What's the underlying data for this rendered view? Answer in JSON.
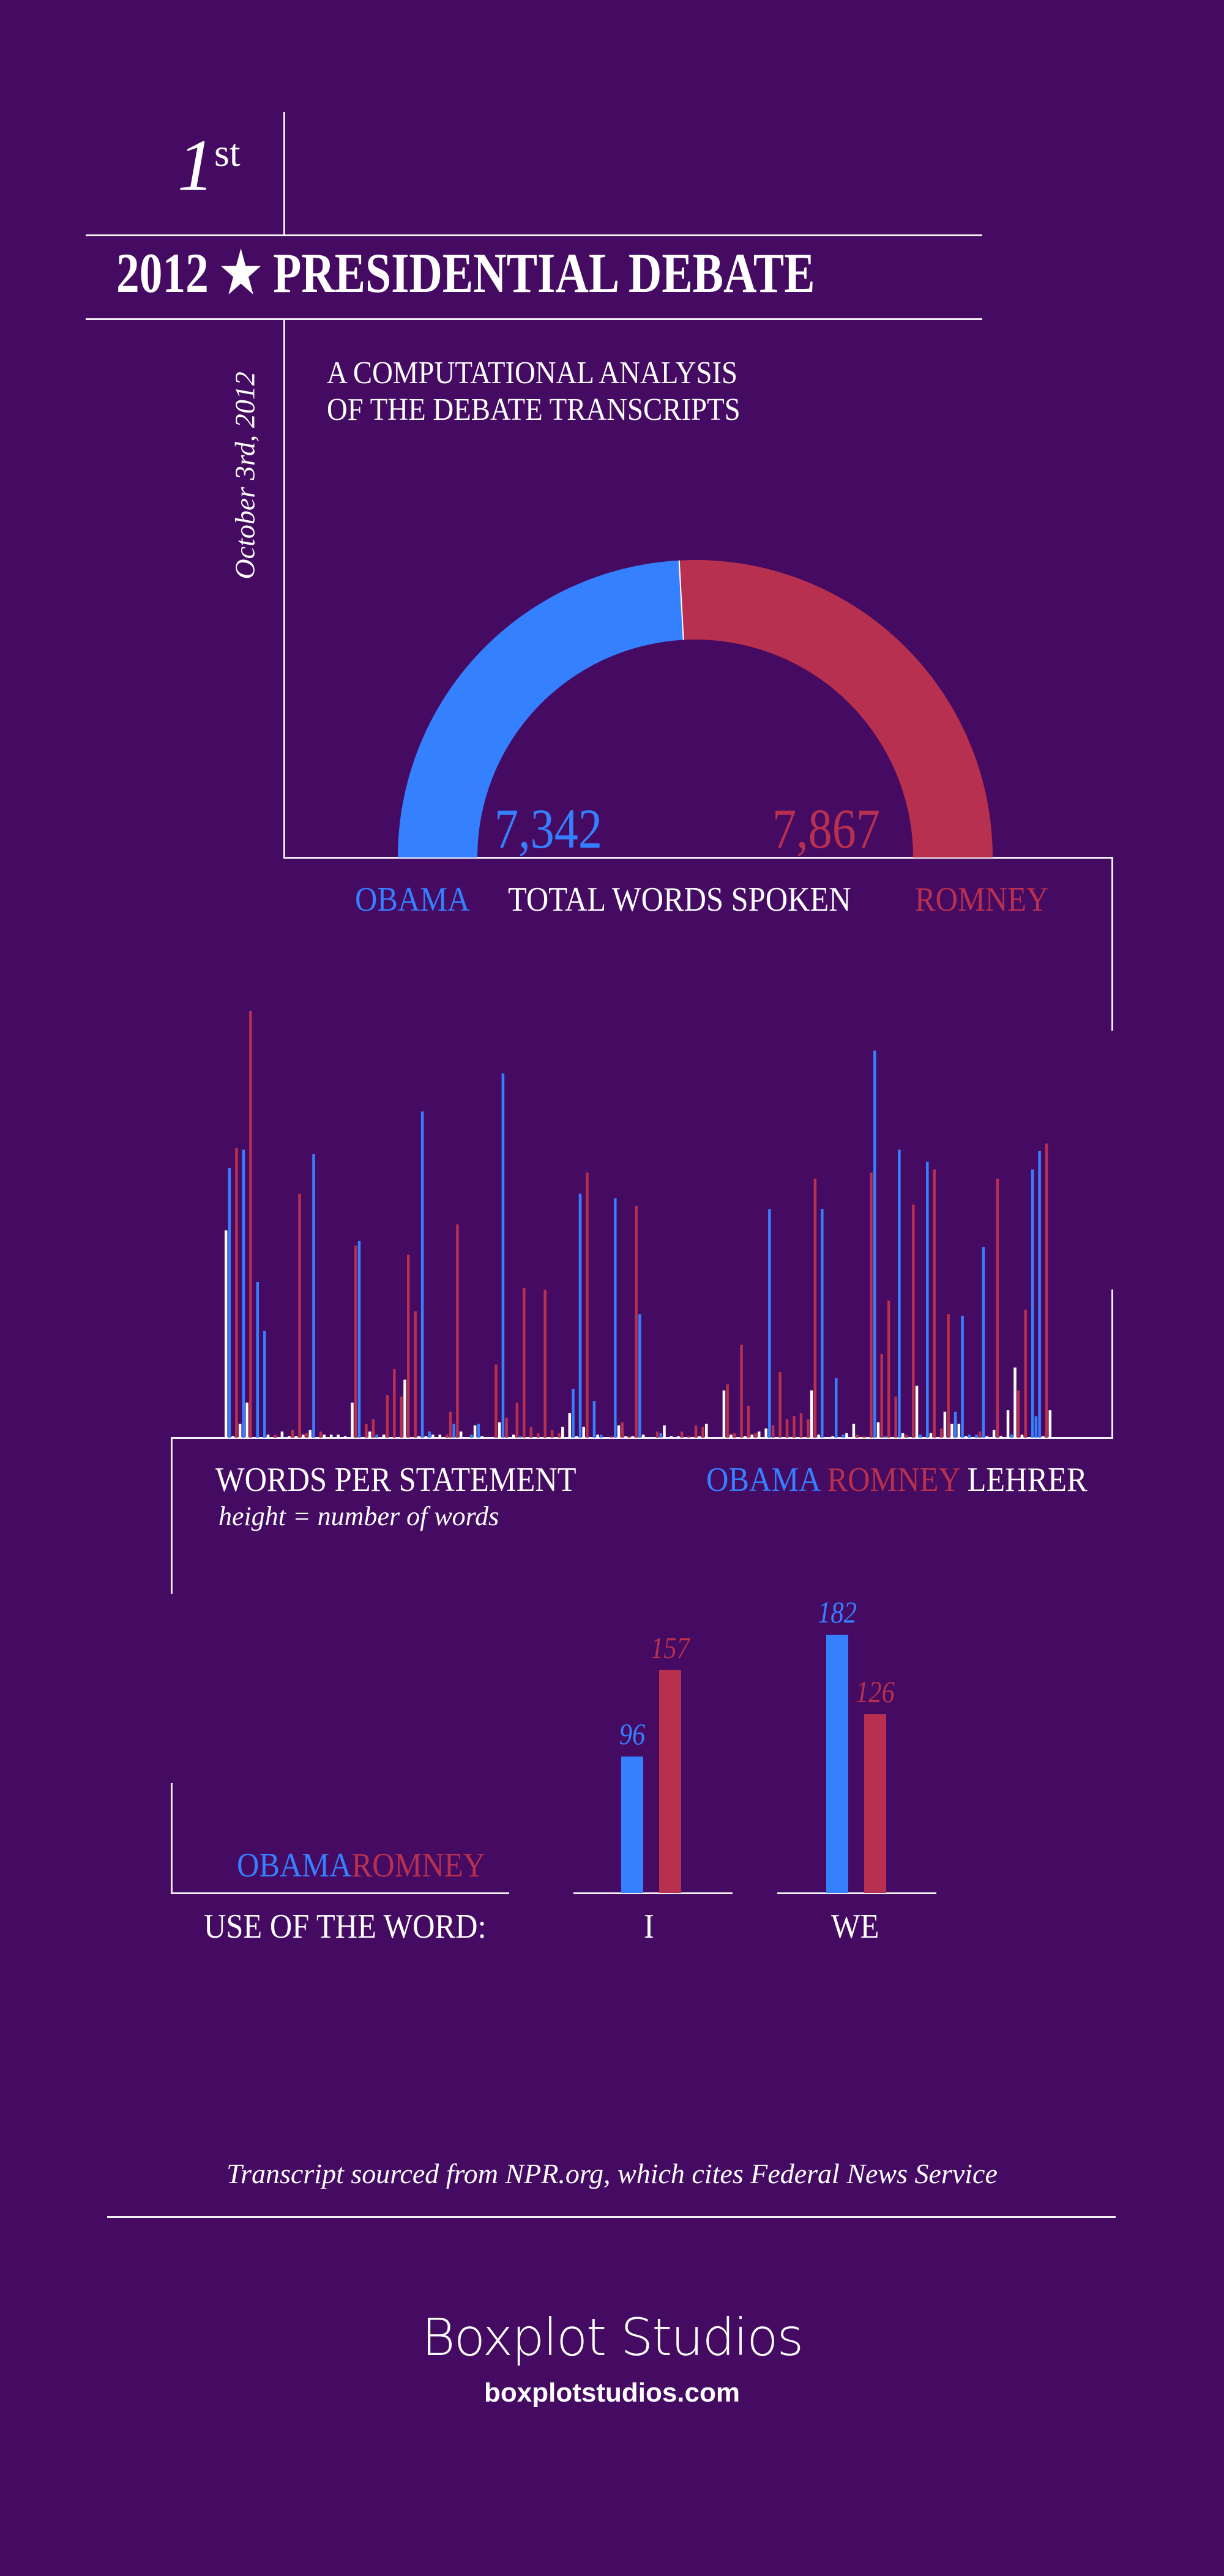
{
  "header": {
    "ordinal_number": "1",
    "ordinal_suffix": "st",
    "title": "2012 ★ PRESIDENTIAL DEBATE",
    "subtitle_line1": "A COMPUTATIONAL ANALYSIS",
    "subtitle_line2": "OF THE DEBATE TRANSCRIPTS",
    "date": "October 3rd, 2012"
  },
  "colors": {
    "background": "#450a61",
    "obama": "#3580ff",
    "romney": "#b7304f",
    "lehrer": "#ffffff"
  },
  "chart_data": [
    {
      "type": "pie",
      "title": "TOTAL WORDS SPOKEN",
      "style": "half-donut",
      "series": [
        {
          "name": "OBAMA",
          "value": 7342,
          "label": "7,342"
        },
        {
          "name": "ROMNEY",
          "value": 7867,
          "label": "7,867"
        }
      ]
    },
    {
      "type": "bar",
      "title": "WORDS PER STATEMENT",
      "subtitle": "height = number of words",
      "legend": [
        {
          "code": "O",
          "name": "OBAMA"
        },
        {
          "code": "R",
          "name": "ROMNEY"
        },
        {
          "code": "L",
          "name": "LEHRER"
        }
      ],
      "legend_placement": "bottom-right",
      "note": "approximate relative word counts per statement, in order",
      "bars": [
        [
          0,
          "L",
          136
        ],
        [
          1,
          "O",
          177
        ],
        [
          2,
          "L",
          1
        ],
        [
          3,
          "R",
          190
        ],
        [
          4,
          "L",
          9
        ],
        [
          5,
          "O",
          189
        ],
        [
          6,
          "L",
          23
        ],
        [
          7,
          "R",
          280
        ],
        [
          9,
          "O",
          102
        ],
        [
          11,
          "O",
          70
        ],
        [
          12,
          "L",
          2
        ],
        [
          14,
          "R",
          2
        ],
        [
          16,
          "L",
          4
        ],
        [
          18,
          "L",
          1
        ],
        [
          19,
          "R",
          5
        ],
        [
          20,
          "L",
          1
        ],
        [
          21,
          "R",
          160
        ],
        [
          22,
          "L",
          2
        ],
        [
          23,
          "R",
          3
        ],
        [
          24,
          "L",
          5
        ],
        [
          25,
          "O",
          186
        ],
        [
          27,
          "R",
          4
        ],
        [
          28,
          "L",
          2
        ],
        [
          30,
          "L",
          2
        ],
        [
          32,
          "L",
          2
        ],
        [
          34,
          "L",
          1
        ],
        [
          36,
          "L",
          23
        ],
        [
          37,
          "R",
          126
        ],
        [
          38,
          "O",
          129
        ],
        [
          40,
          "R",
          9
        ],
        [
          41,
          "L",
          4
        ],
        [
          42,
          "R",
          12
        ],
        [
          43,
          "O",
          2
        ],
        [
          45,
          "L",
          2
        ],
        [
          46,
          "R",
          28
        ],
        [
          48,
          "R",
          45
        ],
        [
          50,
          "R",
          27
        ],
        [
          51,
          "L",
          38
        ],
        [
          52,
          "R",
          120
        ],
        [
          54,
          "R",
          83
        ],
        [
          55,
          "L",
          1
        ],
        [
          56,
          "O",
          214
        ],
        [
          57,
          "L",
          1
        ],
        [
          58,
          "O",
          4
        ],
        [
          59,
          "L",
          2
        ],
        [
          61,
          "L",
          2
        ],
        [
          63,
          "R",
          2
        ],
        [
          64,
          "R",
          17
        ],
        [
          65,
          "O",
          9
        ],
        [
          66,
          "R",
          140
        ],
        [
          67,
          "L",
          4
        ],
        [
          70,
          "O",
          2
        ],
        [
          71,
          "L",
          8
        ],
        [
          72,
          "O",
          9
        ],
        [
          73,
          "L",
          1
        ],
        [
          77,
          "R",
          48
        ],
        [
          78,
          "L",
          10
        ],
        [
          79,
          "O",
          239
        ],
        [
          80,
          "R",
          13
        ],
        [
          82,
          "L",
          2
        ],
        [
          83,
          "R",
          23
        ],
        [
          84,
          "O",
          1
        ],
        [
          85,
          "R",
          98
        ],
        [
          87,
          "R",
          7
        ],
        [
          89,
          "R",
          3
        ],
        [
          91,
          "R",
          97
        ],
        [
          93,
          "R",
          5
        ],
        [
          95,
          "R",
          3
        ],
        [
          96,
          "L",
          7
        ],
        [
          98,
          "L",
          16
        ],
        [
          99,
          "O",
          32
        ],
        [
          100,
          "L",
          1
        ],
        [
          101,
          "O",
          160
        ],
        [
          102,
          "L",
          7
        ],
        [
          103,
          "R",
          174
        ],
        [
          105,
          "O",
          24
        ],
        [
          106,
          "L",
          2
        ],
        [
          107,
          "O",
          2
        ],
        [
          110,
          "R",
          1
        ],
        [
          111,
          "O",
          157
        ],
        [
          112,
          "L",
          8
        ],
        [
          113,
          "R",
          10
        ],
        [
          114,
          "L",
          1
        ],
        [
          115,
          "R",
          1
        ],
        [
          116,
          "L",
          1
        ],
        [
          117,
          "R",
          152
        ],
        [
          118,
          "O",
          81
        ],
        [
          119,
          "L",
          2
        ],
        [
          123,
          "R",
          4
        ],
        [
          124,
          "O",
          3
        ],
        [
          125,
          "L",
          8
        ],
        [
          127,
          "L",
          1
        ],
        [
          129,
          "L",
          1
        ],
        [
          130,
          "R",
          4
        ],
        [
          132,
          "R",
          1
        ],
        [
          134,
          "R",
          8
        ],
        [
          135,
          "L",
          1
        ],
        [
          136,
          "R",
          7
        ],
        [
          137,
          "L",
          9
        ],
        [
          142,
          "L",
          31
        ],
        [
          143,
          "R",
          35
        ],
        [
          144,
          "L",
          2
        ],
        [
          145,
          "R",
          3
        ],
        [
          147,
          "R",
          61
        ],
        [
          148,
          "L",
          1
        ],
        [
          149,
          "R",
          21
        ],
        [
          150,
          "L",
          2
        ],
        [
          151,
          "R",
          3
        ],
        [
          152,
          "L",
          4
        ],
        [
          154,
          "L",
          6
        ],
        [
          155,
          "O",
          150
        ],
        [
          156,
          "R",
          8
        ],
        [
          158,
          "R",
          43
        ],
        [
          160,
          "R",
          12
        ],
        [
          162,
          "R",
          14
        ],
        [
          164,
          "R",
          16
        ],
        [
          166,
          "R",
          12
        ],
        [
          167,
          "L",
          31
        ],
        [
          168,
          "R",
          170
        ],
        [
          169,
          "L",
          2
        ],
        [
          170,
          "O",
          150
        ],
        [
          173,
          "L",
          1
        ],
        [
          174,
          "O",
          39
        ],
        [
          176,
          "O",
          2
        ],
        [
          177,
          "L",
          3
        ],
        [
          179,
          "L",
          9
        ],
        [
          180,
          "R",
          2
        ],
        [
          182,
          "R",
          1
        ],
        [
          184,
          "R",
          174
        ],
        [
          185,
          "O",
          254
        ],
        [
          186,
          "L",
          10
        ],
        [
          187,
          "R",
          55
        ],
        [
          188,
          "O",
          1
        ],
        [
          189,
          "R",
          90
        ],
        [
          191,
          "R",
          27
        ],
        [
          192,
          "O",
          189
        ],
        [
          193,
          "L",
          3
        ],
        [
          194,
          "R",
          2
        ],
        [
          196,
          "R",
          153
        ],
        [
          197,
          "L",
          34
        ],
        [
          198,
          "O",
          2
        ],
        [
          200,
          "O",
          181
        ],
        [
          201,
          "L",
          3
        ],
        [
          202,
          "R",
          176
        ],
        [
          204,
          "R",
          6
        ],
        [
          205,
          "L",
          17
        ],
        [
          206,
          "R",
          81
        ],
        [
          207,
          "L",
          9
        ],
        [
          208,
          "O",
          17
        ],
        [
          209,
          "L",
          9
        ],
        [
          210,
          "O",
          80
        ],
        [
          211,
          "L",
          1
        ],
        [
          212,
          "O",
          2
        ],
        [
          214,
          "O",
          2
        ],
        [
          215,
          "R",
          4
        ],
        [
          216,
          "O",
          125
        ],
        [
          217,
          "L",
          1
        ],
        [
          219,
          "L",
          5
        ],
        [
          220,
          "R",
          170
        ],
        [
          221,
          "L",
          1
        ],
        [
          223,
          "L",
          18
        ],
        [
          224,
          "O",
          2
        ],
        [
          225,
          "L",
          46
        ],
        [
          226,
          "R",
          31
        ],
        [
          227,
          "L",
          2
        ],
        [
          228,
          "R",
          84
        ],
        [
          230,
          "O",
          176
        ],
        [
          231,
          "O",
          14
        ],
        [
          232,
          "O",
          188
        ],
        [
          233,
          "L",
          1
        ],
        [
          234,
          "R",
          193
        ],
        [
          235,
          "L",
          18
        ]
      ]
    },
    {
      "type": "bar",
      "title": "USE OF THE WORD:",
      "legend": [
        "OBAMA",
        "ROMNEY"
      ],
      "categories": [
        "I",
        "WE"
      ],
      "series": [
        {
          "name": "OBAMA",
          "values": [
            96,
            182
          ]
        },
        {
          "name": "ROMNEY",
          "values": [
            157,
            126
          ]
        }
      ]
    }
  ],
  "footer": {
    "source": "Transcript sourced from NPR.org, which cites Federal News Service",
    "brand": "Boxplot Studios",
    "url": "boxplotstudios.com"
  }
}
